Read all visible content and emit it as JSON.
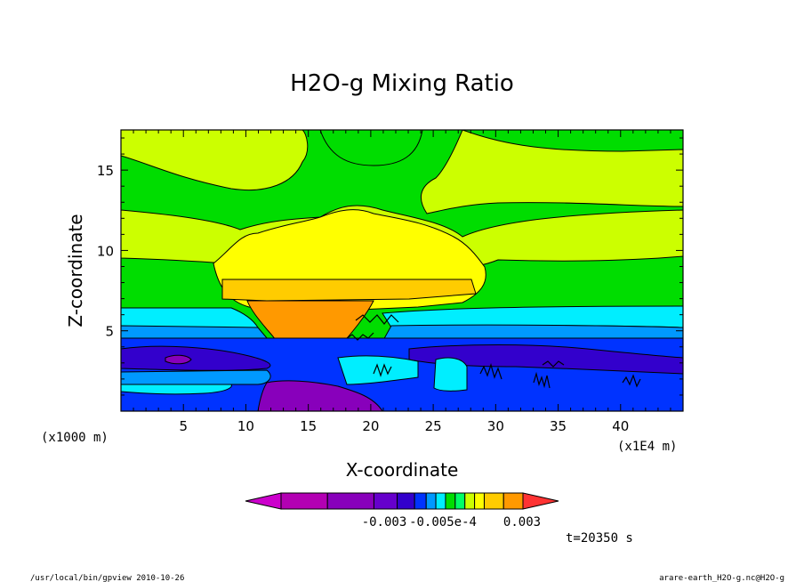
{
  "chart_data": {
    "type": "heatmap",
    "title": "H2O-g Mixing Ratio",
    "xlabel": "X-coordinate",
    "ylabel": "Z-coordinate",
    "x_unit_left": "(x1000 m)",
    "x_unit_right": "(x1E4 m)",
    "xlim": [
      0,
      45
    ],
    "ylim": [
      0,
      17.5
    ],
    "x_ticks": [
      5,
      10,
      15,
      20,
      25,
      30,
      35,
      40
    ],
    "y_ticks": [
      5,
      10,
      15
    ],
    "colorbar_labels": [
      "-0.003",
      "-0.005e-4",
      "0.003"
    ],
    "time_label": "t=20350 s",
    "palette": [
      "#cc00cc",
      "#b300b3",
      "#8800bb",
      "#6600cc",
      "#3300cc",
      "#0033ff",
      "#0099ff",
      "#00eeff",
      "#00dd00",
      "#00ff66",
      "#ccff00",
      "#ffff00",
      "#ffcc00",
      "#ff9900",
      "#ff3333"
    ],
    "fields": [
      {
        "level": "green",
        "color": "#00dd00"
      },
      {
        "level": "yellow-green",
        "color": "#ccff00"
      },
      {
        "level": "yellow",
        "color": "#ffff00"
      },
      {
        "level": "light-orange",
        "color": "#ffcc00"
      },
      {
        "level": "orange",
        "color": "#ff9900"
      },
      {
        "level": "cyan",
        "color": "#00eeff"
      },
      {
        "level": "light-blue",
        "color": "#0099ff"
      },
      {
        "level": "blue",
        "color": "#0033ff"
      },
      {
        "level": "dark-blue",
        "color": "#3300cc"
      },
      {
        "level": "purple",
        "color": "#8800bb"
      }
    ]
  },
  "footer": {
    "left": "/usr/local/bin/gpview  2010-10-26",
    "right": "arare-earth_H2O-g.nc@H2O-g"
  }
}
